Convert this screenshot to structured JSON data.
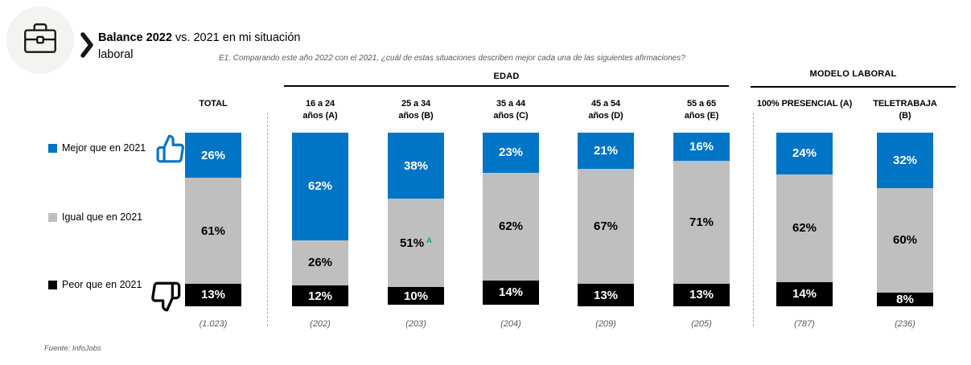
{
  "header": {
    "title_bold": "Balance 2022",
    "title_regular": " vs. 2021 en mi situación",
    "title_line2": "laboral",
    "question": "E1. Comparando este año 2022 con el 2021, ¿cuál de estas situaciones describen mejor cada una de las siguientes afirmaciones?"
  },
  "icons": {
    "logo": "briefcase-icon",
    "header_marker": "chevron-right-icon",
    "legend_positive": "thumbs-up-icon",
    "legend_negative": "thumbs-down-icon"
  },
  "colors": {
    "mejor": "#0074C5",
    "igual": "#BFBFBF",
    "peor": "#000000",
    "significance_green": "#00B050",
    "muted_text": "#595959",
    "logo_circle_bg": "#F3F3F1"
  },
  "legend": {
    "items": [
      {
        "label": "Mejor que en 2021",
        "color": "#0074C5",
        "icon": "thumbs-up-icon"
      },
      {
        "label": "Igual que en 2021",
        "color": "#BFBFBF",
        "icon": null
      },
      {
        "label": "Peor que en 2021",
        "color": "#000000",
        "icon": "thumbs-down-icon"
      }
    ]
  },
  "group_headers": [
    {
      "label": "EDAD"
    },
    {
      "label": "MODELO LABORAL"
    }
  ],
  "chart_data": {
    "type": "bar",
    "variant": "100%-stacked-vertical",
    "title": "Balance 2022 vs. 2021 en mi situación laboral",
    "question": "E1. Comparando este año 2022 con el 2021, ¿cuál de estas situaciones describen mejor cada una de las siguientes afirmaciones?",
    "categories": [
      "TOTAL",
      "16 a 24 años (A)",
      "25 a 34 años (B)",
      "35 a 44 años (C)",
      "45 a 54 años (D)",
      "55 a 65 años (E)",
      "100% PRESENCIAL (A)",
      "TELETRABAJA (B)"
    ],
    "category_label_lines": [
      [
        "TOTAL"
      ],
      [
        "16 a 24",
        "años (A)"
      ],
      [
        "25 a 34",
        "años (B)"
      ],
      [
        "35 a 44",
        "años (C)"
      ],
      [
        "45 a 54",
        "años (D)"
      ],
      [
        "55 a 65",
        "años (E)"
      ],
      [
        "100% PRESENCIAL (A)"
      ],
      [
        "TELETRABAJA",
        "(B)"
      ]
    ],
    "category_groups": [
      null,
      "EDAD",
      "EDAD",
      "EDAD",
      "EDAD",
      "EDAD",
      "MODELO LABORAL",
      "MODELO LABORAL"
    ],
    "bases": [
      "(1.023)",
      "(202)",
      "(203)",
      "(204)",
      "(209)",
      "(205)",
      "(787)",
      "(236)"
    ],
    "series": [
      {
        "name": "Mejor que en 2021",
        "color": "#0074C5",
        "values": [
          26,
          62,
          38,
          23,
          21,
          16,
          24,
          32
        ]
      },
      {
        "name": "Igual que en 2021",
        "color": "#BFBFBF",
        "values": [
          61,
          26,
          51,
          62,
          67,
          71,
          62,
          60
        ]
      },
      {
        "name": "Peor que en 2021",
        "color": "#000000",
        "values": [
          13,
          12,
          10,
          14,
          13,
          13,
          14,
          8
        ]
      }
    ],
    "stack_order_top_to_bottom": [
      "Mejor que en 2021",
      "Igual que en 2021",
      "Peor que en 2021"
    ],
    "significance_notes": [
      {
        "category_index": 2,
        "series_index": 1,
        "note": "A",
        "color": "#00B050"
      }
    ],
    "value_suffix": "%",
    "ylim": [
      0,
      100
    ],
    "grid": false,
    "legend_position": "left"
  },
  "footer": {
    "source": "Fuente: InfoJobs"
  }
}
